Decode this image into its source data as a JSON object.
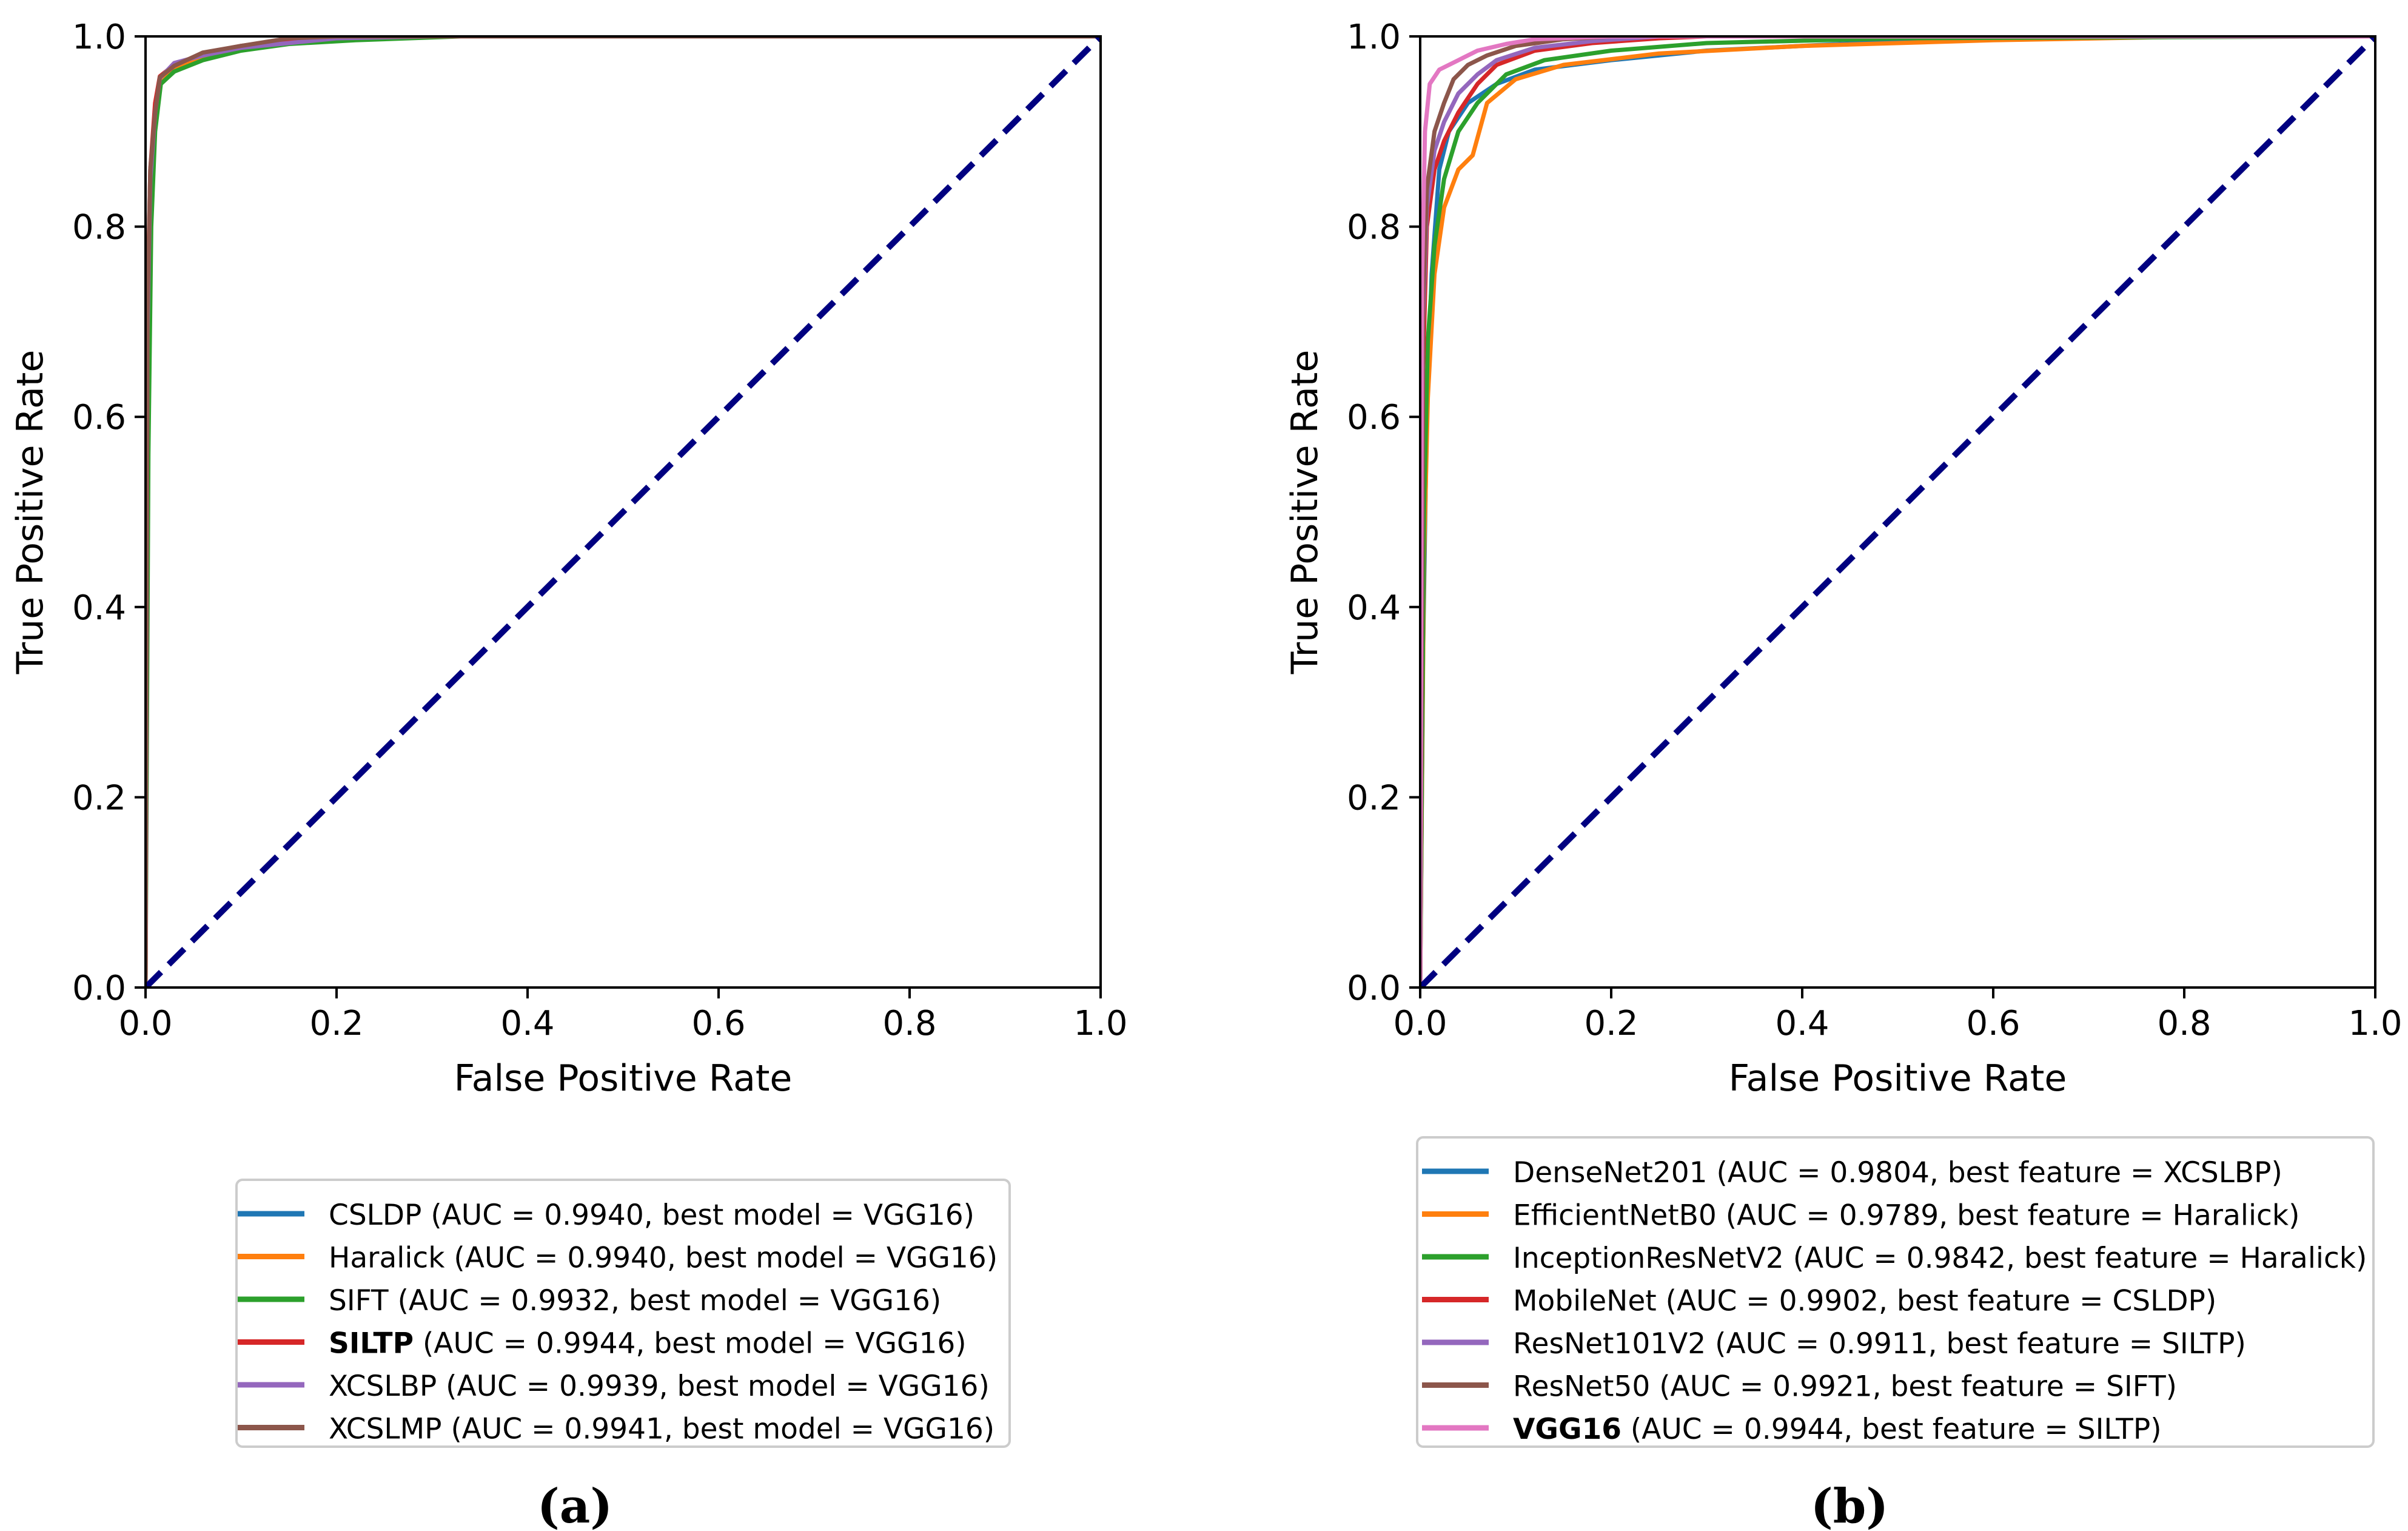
{
  "chart_data": [
    {
      "type": "line",
      "panel_label": "(a)",
      "xlabel": "False Positive Rate",
      "ylabel": "True Positive Rate",
      "xlim": [
        0.0,
        1.0
      ],
      "ylim": [
        0.0,
        1.0
      ],
      "xticks": [
        "0.0",
        "0.2",
        "0.4",
        "0.6",
        "0.8",
        "1.0"
      ],
      "yticks": [
        "0.0",
        "0.2",
        "0.4",
        "0.6",
        "0.8",
        "1.0"
      ],
      "legend_position": "below",
      "diagonal": {
        "x": [
          0,
          1
        ],
        "y": [
          0,
          1
        ],
        "color": "#000080",
        "style": "dashed"
      },
      "series": [
        {
          "name": "CSLDP",
          "legend_rest": " (AUC = 0.9940, best model = VGG16)",
          "bold": false,
          "color": "#1f77b4",
          "x": [
            0,
            0.002,
            0.005,
            0.01,
            0.015,
            0.03,
            0.06,
            0.1,
            0.15,
            0.2,
            0.3,
            1.0
          ],
          "y": [
            0,
            0.7,
            0.85,
            0.92,
            0.957,
            0.968,
            0.98,
            0.99,
            0.996,
            0.999,
            1.0,
            1.0
          ]
        },
        {
          "name": "Haralick",
          "legend_rest": " (AUC = 0.9940, best model = VGG16)",
          "bold": false,
          "color": "#ff7f0e",
          "x": [
            0,
            0.002,
            0.005,
            0.01,
            0.015,
            0.03,
            0.06,
            0.1,
            0.15,
            0.2,
            0.3,
            1.0
          ],
          "y": [
            0,
            0.68,
            0.84,
            0.91,
            0.955,
            0.965,
            0.978,
            0.989,
            0.995,
            0.999,
            1.0,
            1.0
          ]
        },
        {
          "name": "SIFT",
          "legend_rest": " (AUC = 0.9932, best model = VGG16)",
          "bold": false,
          "color": "#2ca02c",
          "x": [
            0,
            0.003,
            0.006,
            0.01,
            0.016,
            0.03,
            0.06,
            0.1,
            0.15,
            0.22,
            0.33,
            1.0
          ],
          "y": [
            0,
            0.56,
            0.8,
            0.9,
            0.95,
            0.963,
            0.975,
            0.985,
            0.992,
            0.996,
            1.0,
            1.0
          ]
        },
        {
          "name": "SILTP",
          "legend_rest": " (AUC = 0.9944, best model = VGG16)",
          "bold": true,
          "color": "#d62728",
          "x": [
            0,
            0.002,
            0.005,
            0.01,
            0.015,
            0.03,
            0.06,
            0.1,
            0.15,
            0.2,
            0.25,
            1.0
          ],
          "y": [
            0,
            0.72,
            0.86,
            0.93,
            0.958,
            0.97,
            0.982,
            0.99,
            0.997,
            1.0,
            1.0,
            1.0
          ]
        },
        {
          "name": "XCSLBP",
          "legend_rest": " (AUC = 0.9939, best model = VGG16)",
          "bold": false,
          "color": "#9467bd",
          "x": [
            0,
            0.002,
            0.005,
            0.01,
            0.015,
            0.03,
            0.06,
            0.1,
            0.15,
            0.2,
            0.3,
            1.0
          ],
          "y": [
            0,
            0.69,
            0.85,
            0.92,
            0.956,
            0.972,
            0.98,
            0.988,
            0.993,
            0.998,
            1.0,
            1.0
          ]
        },
        {
          "name": "XCSLMP",
          "legend_rest": " (AUC = 0.9941, best model = VGG16)",
          "bold": false,
          "color": "#8c564b",
          "x": [
            0,
            0.002,
            0.005,
            0.01,
            0.015,
            0.03,
            0.06,
            0.1,
            0.15,
            0.2,
            0.3,
            1.0
          ],
          "y": [
            0,
            0.71,
            0.86,
            0.92,
            0.957,
            0.969,
            0.983,
            0.99,
            0.998,
            1.0,
            1.0,
            1.0
          ]
        }
      ]
    },
    {
      "type": "line",
      "panel_label": "(b)",
      "xlabel": "False Positive Rate",
      "ylabel": "True Positive Rate",
      "xlim": [
        0.0,
        1.0
      ],
      "ylim": [
        0.0,
        1.0
      ],
      "xticks": [
        "0.0",
        "0.2",
        "0.4",
        "0.6",
        "0.8",
        "1.0"
      ],
      "yticks": [
        "0.0",
        "0.2",
        "0.4",
        "0.6",
        "0.8",
        "1.0"
      ],
      "legend_position": "below",
      "diagonal": {
        "x": [
          0,
          1
        ],
        "y": [
          0,
          1
        ],
        "color": "#000080",
        "style": "dashed"
      },
      "series": [
        {
          "name": "DenseNet201",
          "legend_rest": " (AUC = 0.9804, best feature = XCSLBP)",
          "bold": false,
          "color": "#1f77b4",
          "x": [
            0,
            0.003,
            0.007,
            0.012,
            0.02,
            0.03,
            0.05,
            0.08,
            0.12,
            0.2,
            0.3,
            0.5,
            0.6,
            1.0
          ],
          "y": [
            0,
            0.35,
            0.6,
            0.75,
            0.86,
            0.9,
            0.93,
            0.95,
            0.965,
            0.975,
            0.985,
            0.995,
            1.0,
            1.0
          ]
        },
        {
          "name": "EfficientNetB0",
          "legend_rest": " (AUC = 0.9789, best feature = Haralick)",
          "bold": false,
          "color": "#ff7f0e",
          "x": [
            0,
            0.004,
            0.008,
            0.015,
            0.025,
            0.04,
            0.055,
            0.07,
            0.1,
            0.15,
            0.25,
            0.4,
            0.6,
            0.82,
            1.0
          ],
          "y": [
            0,
            0.45,
            0.62,
            0.75,
            0.82,
            0.86,
            0.875,
            0.93,
            0.955,
            0.97,
            0.982,
            0.99,
            0.996,
            1.0,
            1.0
          ]
        },
        {
          "name": "InceptionResNetV2",
          "legend_rest": " (AUC = 0.9842, best feature = Haralick)",
          "bold": false,
          "color": "#2ca02c",
          "x": [
            0,
            0.004,
            0.008,
            0.015,
            0.025,
            0.04,
            0.06,
            0.09,
            0.13,
            0.2,
            0.3,
            0.5,
            1.0
          ],
          "y": [
            0,
            0.5,
            0.68,
            0.78,
            0.85,
            0.9,
            0.93,
            0.96,
            0.975,
            0.985,
            0.993,
            0.998,
            1.0
          ]
        },
        {
          "name": "MobileNet",
          "legend_rest": " (AUC = 0.9902, best feature = CSLDP)",
          "bold": false,
          "color": "#d62728",
          "x": [
            0,
            0.003,
            0.007,
            0.015,
            0.025,
            0.04,
            0.06,
            0.08,
            0.12,
            0.18,
            0.25,
            0.3,
            1.0
          ],
          "y": [
            0,
            0.65,
            0.8,
            0.86,
            0.89,
            0.92,
            0.95,
            0.97,
            0.985,
            0.993,
            0.998,
            1.0,
            1.0
          ]
        },
        {
          "name": "ResNet101V2",
          "legend_rest": " (AUC = 0.9911, best feature = SILTP)",
          "bold": false,
          "color": "#9467bd",
          "x": [
            0,
            0.003,
            0.007,
            0.015,
            0.025,
            0.04,
            0.06,
            0.08,
            0.12,
            0.18,
            0.25,
            1.0
          ],
          "y": [
            0,
            0.7,
            0.82,
            0.88,
            0.91,
            0.94,
            0.96,
            0.975,
            0.988,
            0.995,
            1.0,
            1.0
          ]
        },
        {
          "name": "ResNet50",
          "legend_rest": " (AUC = 0.9921, best feature = SIFT)",
          "bold": false,
          "color": "#8c564b",
          "x": [
            0,
            0.003,
            0.007,
            0.015,
            0.025,
            0.035,
            0.05,
            0.07,
            0.1,
            0.15,
            0.2,
            1.0
          ],
          "y": [
            0,
            0.72,
            0.84,
            0.9,
            0.93,
            0.955,
            0.97,
            0.98,
            0.99,
            0.997,
            1.0,
            1.0
          ]
        },
        {
          "name": "VGG16",
          "legend_rest": " (AUC = 0.9944, best feature = SILTP)",
          "bold": true,
          "color": "#e377c2",
          "x": [
            0,
            0.002,
            0.005,
            0.01,
            0.02,
            0.04,
            0.06,
            0.09,
            0.12,
            0.2,
            1.0
          ],
          "y": [
            0,
            0.75,
            0.9,
            0.95,
            0.965,
            0.975,
            0.985,
            0.992,
            0.997,
            1.0,
            1.0
          ]
        }
      ]
    }
  ]
}
